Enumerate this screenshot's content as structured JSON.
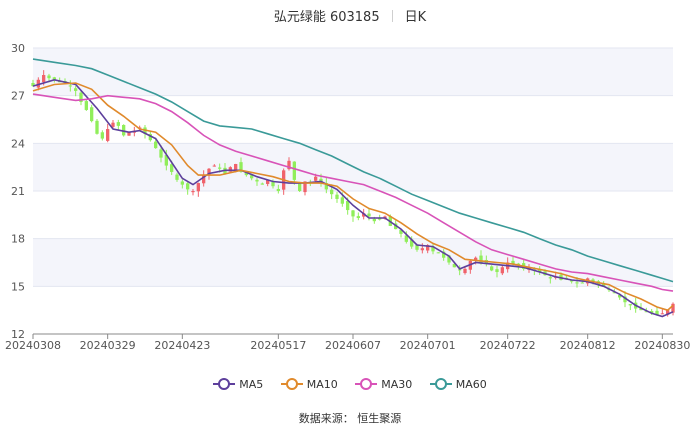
{
  "header": {
    "stock": "弘元绿能 603185",
    "period": "日K"
  },
  "source": "数据来源： 恒生聚源",
  "colors": {
    "up": "#f0626b",
    "down": "#90ee5a",
    "ma5": "#5d3f9c",
    "ma10": "#e08a2c",
    "ma30": "#d853b8",
    "ma60": "#3a9a98",
    "band": "#f4f5fb",
    "grid": "#e3e6f0",
    "axis": "#888888"
  },
  "chart_data": {
    "type": "candlestick",
    "ylim": [
      12,
      30
    ],
    "yticks": [
      12,
      15,
      18,
      21,
      24,
      27,
      30
    ],
    "grid": true,
    "legend_position": "bottom",
    "xlabels": [
      {
        "day": 0,
        "label": "20240308"
      },
      {
        "day": 14,
        "label": "20240329"
      },
      {
        "day": 28,
        "label": "20240423"
      },
      {
        "day": 46,
        "label": "20240517"
      },
      {
        "day": 60,
        "label": "20240607"
      },
      {
        "day": 74,
        "label": "20240701"
      },
      {
        "day": 89,
        "label": "20240722"
      },
      {
        "day": 104,
        "label": "20240812"
      },
      {
        "day": 118,
        "label": "20240830"
      }
    ],
    "closes": [
      27.6,
      28.0,
      28.3,
      28.1,
      28.0,
      27.9,
      27.8,
      27.6,
      27.3,
      26.6,
      26.1,
      25.4,
      24.6,
      24.3,
      24.9,
      25.3,
      25.1,
      24.5,
      24.7,
      24.8,
      25.0,
      24.6,
      24.2,
      23.7,
      23.1,
      22.6,
      22.2,
      21.7,
      21.4,
      21.1,
      21.0,
      21.5,
      22.0,
      22.4,
      22.6,
      22.4,
      22.1,
      22.5,
      22.7,
      22.2,
      22.0,
      21.8,
      21.6,
      21.4,
      21.7,
      21.3,
      21.0,
      22.3,
      22.9,
      21.7,
      21.0,
      21.6,
      21.5,
      21.9,
      21.5,
      21.1,
      20.8,
      20.5,
      20.2,
      19.8,
      19.4,
      19.3,
      19.6,
      19.4,
      19.1,
      19.2,
      19.4,
      18.8,
      18.6,
      18.3,
      17.8,
      17.5,
      17.3,
      17.4,
      17.6,
      17.2,
      17.1,
      16.8,
      16.5,
      16.2,
      16.0,
      16.1,
      16.6,
      16.8,
      16.5,
      16.4,
      16.0,
      15.9,
      16.2,
      16.5,
      16.4,
      16.3,
      16.1,
      16.2,
      16.0,
      15.9,
      15.7,
      15.5,
      15.6,
      15.4,
      15.5,
      15.3,
      15.2,
      15.2,
      15.5,
      15.3,
      15.1,
      15.0,
      14.8,
      14.6,
      14.3,
      14.0,
      13.8,
      13.6,
      13.5,
      13.4,
      13.3,
      13.2,
      13.3,
      13.5,
      13.9
    ],
    "series": [
      {
        "name": "MA5",
        "values": [
          [
            0,
            27.6
          ],
          [
            4,
            28.0
          ],
          [
            8,
            27.7
          ],
          [
            12,
            26.2
          ],
          [
            15,
            24.9
          ],
          [
            18,
            24.7
          ],
          [
            20,
            24.8
          ],
          [
            23,
            24.3
          ],
          [
            26,
            22.8
          ],
          [
            28,
            21.8
          ],
          [
            30,
            21.4
          ],
          [
            33,
            22.1
          ],
          [
            36,
            22.3
          ],
          [
            39,
            22.3
          ],
          [
            42,
            21.9
          ],
          [
            45,
            21.6
          ],
          [
            48,
            21.5
          ],
          [
            51,
            21.5
          ],
          [
            54,
            21.6
          ],
          [
            57,
            21.1
          ],
          [
            60,
            20.1
          ],
          [
            63,
            19.3
          ],
          [
            66,
            19.3
          ],
          [
            69,
            18.6
          ],
          [
            72,
            17.6
          ],
          [
            75,
            17.5
          ],
          [
            78,
            16.9
          ],
          [
            80,
            16.1
          ],
          [
            83,
            16.5
          ],
          [
            86,
            16.4
          ],
          [
            89,
            16.3
          ],
          [
            92,
            16.2
          ],
          [
            95,
            15.9
          ],
          [
            98,
            15.6
          ],
          [
            101,
            15.4
          ],
          [
            104,
            15.3
          ],
          [
            107,
            15.0
          ],
          [
            110,
            14.5
          ],
          [
            113,
            13.8
          ],
          [
            116,
            13.3
          ],
          [
            118,
            13.1
          ],
          [
            120,
            13.4
          ]
        ]
      },
      {
        "name": "MA10",
        "values": [
          [
            0,
            27.3
          ],
          [
            4,
            27.7
          ],
          [
            8,
            27.8
          ],
          [
            11,
            27.4
          ],
          [
            14,
            26.4
          ],
          [
            17,
            25.7
          ],
          [
            20,
            24.9
          ],
          [
            23,
            24.7
          ],
          [
            26,
            23.9
          ],
          [
            29,
            22.6
          ],
          [
            31,
            22.0
          ],
          [
            35,
            22.0
          ],
          [
            39,
            22.3
          ],
          [
            42,
            22.1
          ],
          [
            45,
            21.9
          ],
          [
            48,
            21.6
          ],
          [
            51,
            21.5
          ],
          [
            54,
            21.5
          ],
          [
            57,
            21.3
          ],
          [
            60,
            20.5
          ],
          [
            63,
            19.9
          ],
          [
            66,
            19.6
          ],
          [
            69,
            19.0
          ],
          [
            72,
            18.3
          ],
          [
            75,
            17.7
          ],
          [
            78,
            17.3
          ],
          [
            81,
            16.7
          ],
          [
            84,
            16.6
          ],
          [
            87,
            16.5
          ],
          [
            90,
            16.4
          ],
          [
            93,
            16.2
          ],
          [
            96,
            16.0
          ],
          [
            99,
            15.8
          ],
          [
            102,
            15.5
          ],
          [
            105,
            15.3
          ],
          [
            108,
            15.1
          ],
          [
            111,
            14.6
          ],
          [
            114,
            14.2
          ],
          [
            117,
            13.7
          ],
          [
            119,
            13.5
          ],
          [
            120,
            13.8
          ]
        ]
      },
      {
        "name": "MA30",
        "values": [
          [
            0,
            27.1
          ],
          [
            4,
            26.9
          ],
          [
            8,
            26.7
          ],
          [
            11,
            26.8
          ],
          [
            14,
            27.0
          ],
          [
            17,
            26.9
          ],
          [
            20,
            26.8
          ],
          [
            23,
            26.5
          ],
          [
            26,
            26.0
          ],
          [
            29,
            25.3
          ],
          [
            32,
            24.5
          ],
          [
            35,
            23.9
          ],
          [
            38,
            23.5
          ],
          [
            41,
            23.2
          ],
          [
            44,
            22.9
          ],
          [
            47,
            22.6
          ],
          [
            50,
            22.3
          ],
          [
            53,
            22.0
          ],
          [
            56,
            21.8
          ],
          [
            59,
            21.6
          ],
          [
            62,
            21.4
          ],
          [
            65,
            21.0
          ],
          [
            68,
            20.6
          ],
          [
            71,
            20.1
          ],
          [
            74,
            19.6
          ],
          [
            77,
            19.0
          ],
          [
            80,
            18.4
          ],
          [
            83,
            17.8
          ],
          [
            86,
            17.3
          ],
          [
            89,
            17.0
          ],
          [
            92,
            16.7
          ],
          [
            95,
            16.4
          ],
          [
            98,
            16.1
          ],
          [
            101,
            15.9
          ],
          [
            104,
            15.8
          ],
          [
            107,
            15.6
          ],
          [
            110,
            15.4
          ],
          [
            113,
            15.2
          ],
          [
            116,
            15.0
          ],
          [
            118,
            14.8
          ],
          [
            120,
            14.7
          ]
        ]
      },
      {
        "name": "MA60",
        "values": [
          [
            0,
            29.3
          ],
          [
            4,
            29.1
          ],
          [
            8,
            28.9
          ],
          [
            11,
            28.7
          ],
          [
            14,
            28.3
          ],
          [
            17,
            27.9
          ],
          [
            20,
            27.5
          ],
          [
            23,
            27.1
          ],
          [
            26,
            26.6
          ],
          [
            29,
            26.0
          ],
          [
            32,
            25.4
          ],
          [
            35,
            25.1
          ],
          [
            38,
            25.0
          ],
          [
            41,
            24.9
          ],
          [
            44,
            24.6
          ],
          [
            47,
            24.3
          ],
          [
            50,
            24.0
          ],
          [
            53,
            23.6
          ],
          [
            56,
            23.2
          ],
          [
            59,
            22.7
          ],
          [
            62,
            22.2
          ],
          [
            65,
            21.8
          ],
          [
            68,
            21.3
          ],
          [
            71,
            20.8
          ],
          [
            74,
            20.4
          ],
          [
            77,
            20.0
          ],
          [
            80,
            19.6
          ],
          [
            83,
            19.3
          ],
          [
            86,
            19.0
          ],
          [
            89,
            18.7
          ],
          [
            92,
            18.4
          ],
          [
            95,
            18.0
          ],
          [
            98,
            17.6
          ],
          [
            101,
            17.3
          ],
          [
            104,
            16.9
          ],
          [
            107,
            16.6
          ],
          [
            110,
            16.3
          ],
          [
            113,
            16.0
          ],
          [
            116,
            15.7
          ],
          [
            118,
            15.5
          ],
          [
            120,
            15.3
          ]
        ]
      }
    ]
  },
  "legend": [
    "MA5",
    "MA10",
    "MA30",
    "MA60"
  ]
}
